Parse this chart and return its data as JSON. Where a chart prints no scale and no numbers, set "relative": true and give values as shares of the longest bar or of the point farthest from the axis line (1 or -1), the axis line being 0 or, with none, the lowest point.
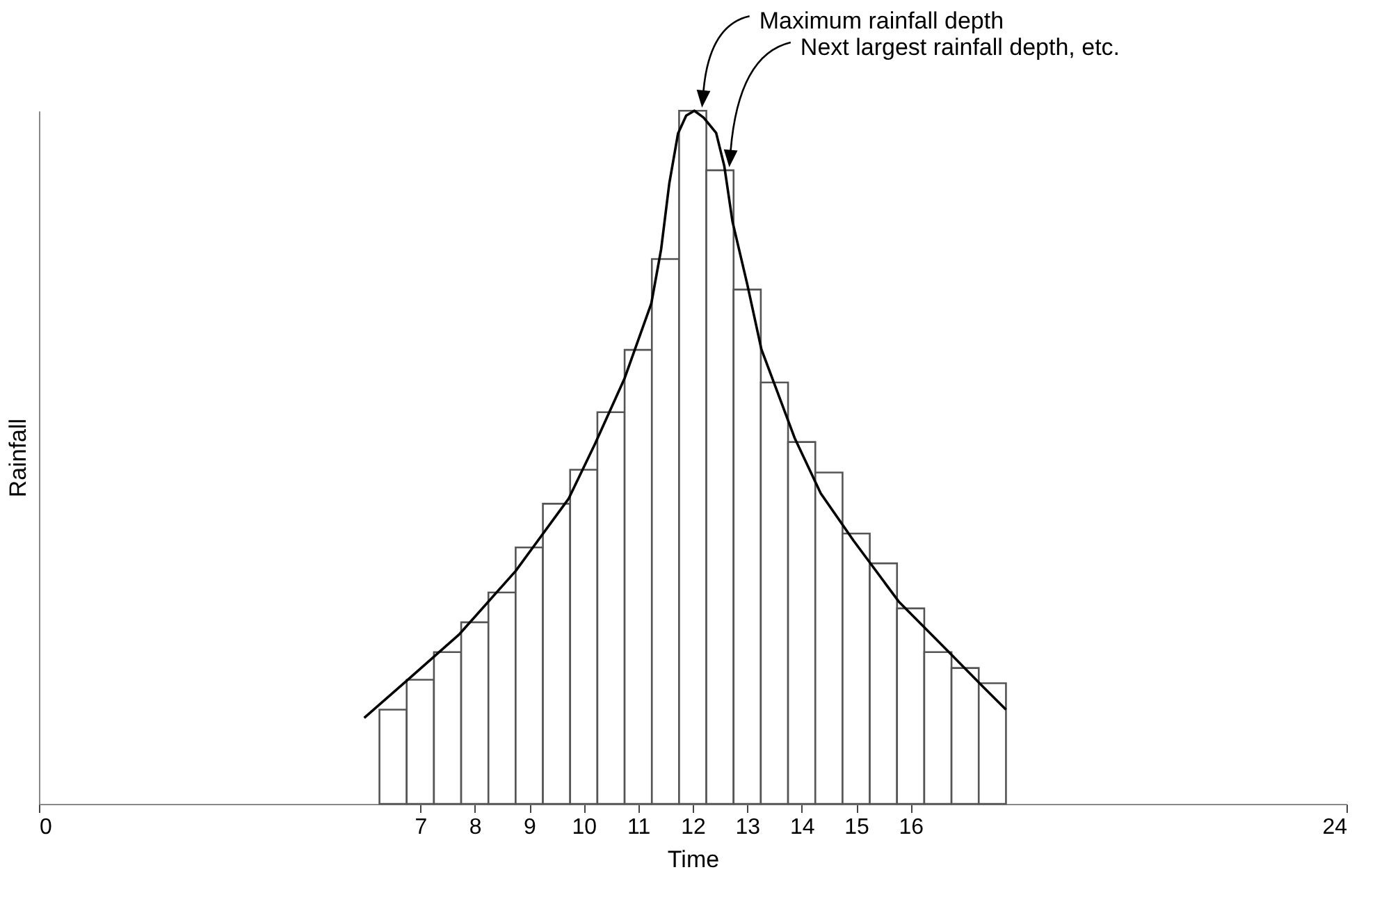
{
  "chart_data": {
    "type": "histogram",
    "relative": true,
    "xlabel": "Time",
    "ylabel": "Rainfall",
    "bins": [
      6.25,
      6.75,
      7.25,
      7.75,
      8.25,
      8.75,
      9.25,
      9.75,
      10.25,
      10.75,
      11.25,
      11.75,
      12.25,
      12.75,
      13.25,
      13.75,
      14.25,
      14.75,
      15.25,
      15.75,
      16.25,
      16.75,
      17.25,
      17.75
    ],
    "values": [
      0.136,
      0.179,
      0.219,
      0.262,
      0.305,
      0.37,
      0.433,
      0.482,
      0.565,
      0.655,
      0.786,
      1,
      0.914,
      0.742,
      0.608,
      0.522,
      0.478,
      0.39,
      0.347,
      0.282,
      0.219,
      0.196,
      0.174
    ],
    "series": [
      {
        "type": "line",
        "color": "#000000",
        "x": [
          5.97,
          6.74,
          7.72,
          8.75,
          9.72,
          10.21,
          10.75,
          11.24,
          11.42,
          11.57,
          11.73,
          11.88,
          12.03,
          12.2,
          12.43,
          12.58,
          12.73,
          13.0,
          13.26,
          13.87,
          14.35,
          14.95,
          15.78,
          16.74,
          17.34,
          17.75
        ],
        "values": [
          0.124,
          0.177,
          0.245,
          0.336,
          0.44,
          0.52,
          0.614,
          0.722,
          0.8,
          0.895,
          0.967,
          0.993,
          1,
          0.99,
          0.968,
          0.92,
          0.84,
          0.75,
          0.656,
          0.528,
          0.448,
          0.38,
          0.292,
          0.216,
          0.168,
          0.136
        ]
      }
    ],
    "xlim": [
      0,
      24
    ],
    "xticks": [
      0,
      7,
      8,
      9,
      10,
      11,
      12,
      13,
      14,
      15,
      16,
      24
    ],
    "annotations": [
      "Maximum rainfall depth",
      "Next largest rainfall depth, etc."
    ]
  }
}
